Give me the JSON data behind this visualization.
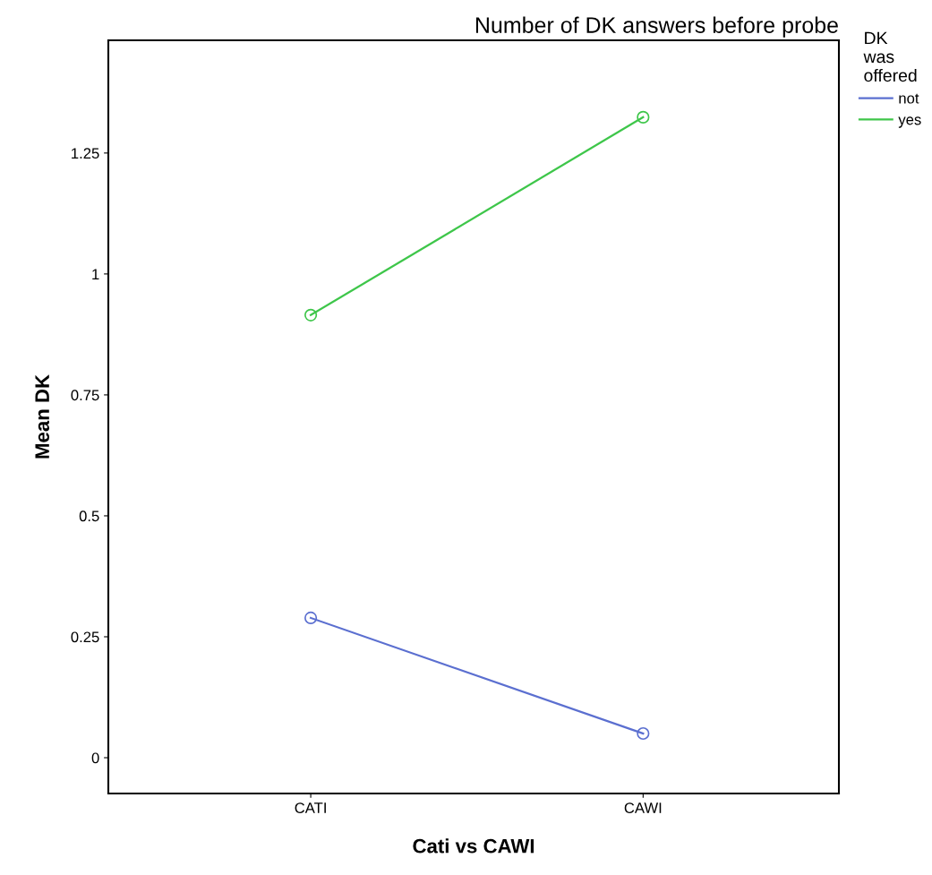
{
  "chart_data": {
    "type": "line",
    "title": "Number of DK answers before probe",
    "xlabel": "Cati vs CAWI",
    "ylabel": "Mean DK",
    "legend_title": "DK\nwas\noffered",
    "categories": [
      "CATI",
      "CAWI"
    ],
    "series": [
      {
        "name": "not",
        "color": "#5b6fd0",
        "values": [
          0.289,
          0.05
        ]
      },
      {
        "name": "yes",
        "color": "#3ec64a",
        "values": [
          0.915,
          1.324
        ]
      }
    ],
    "ylim": [
      -0.074,
      1.483
    ],
    "yticks": [
      0,
      0.25,
      0.5,
      0.75,
      1,
      1.25
    ],
    "grid": false,
    "legend": "right",
    "marker": "circle",
    "line_style": "solid"
  }
}
